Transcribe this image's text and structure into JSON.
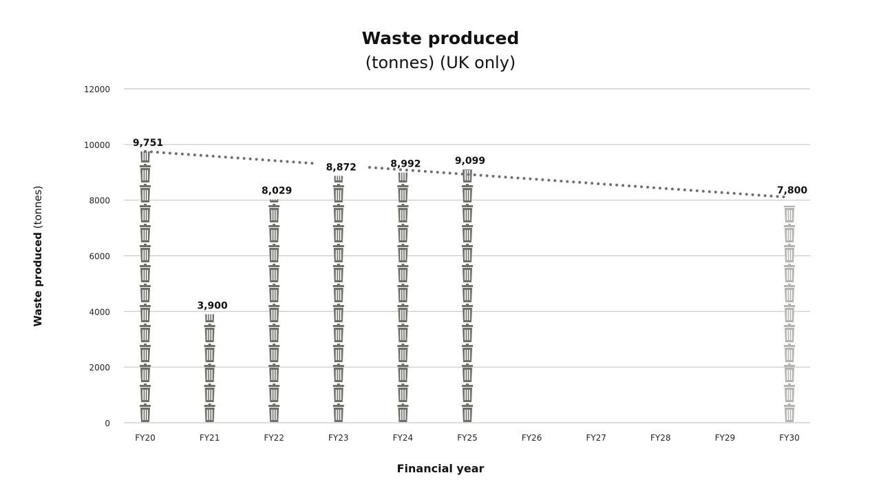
{
  "chart_data": {
    "type": "bar",
    "title": "Waste produced",
    "subtitle": "(tonnes) (UK only)",
    "xlabel": "Financial year",
    "ylabel_bold": "Waste produced",
    "ylabel_rest": " (tonnes)",
    "ylim": [
      0,
      12000
    ],
    "yticks": [
      0,
      2000,
      4000,
      6000,
      8000,
      10000,
      12000
    ],
    "grid": true,
    "categories": [
      "FY20",
      "FY21",
      "FY22",
      "FY23",
      "FY24",
      "FY25",
      "FY26",
      "FY27",
      "FY28",
      "FY29",
      "FY30"
    ],
    "values": [
      9751,
      3900,
      8029,
      8872,
      8992,
      9099,
      null,
      null,
      null,
      null,
      7800
    ],
    "labels": [
      "9,751",
      "3,900",
      "8,029",
      "8,872",
      "8,992",
      "9,099",
      "",
      "",
      "",
      "",
      "7,800"
    ],
    "target_category": "FY30",
    "trendline": {
      "style": "dotted",
      "from": [
        "FY20",
        9751
      ],
      "to": [
        "FY30",
        8100
      ]
    },
    "colors": {
      "bar": "#6f6e68",
      "target_bar": "#b5b4b0",
      "trend": "#6f6e68",
      "grid": "#c8c8c8"
    },
    "icon": "trash-can-icon"
  }
}
